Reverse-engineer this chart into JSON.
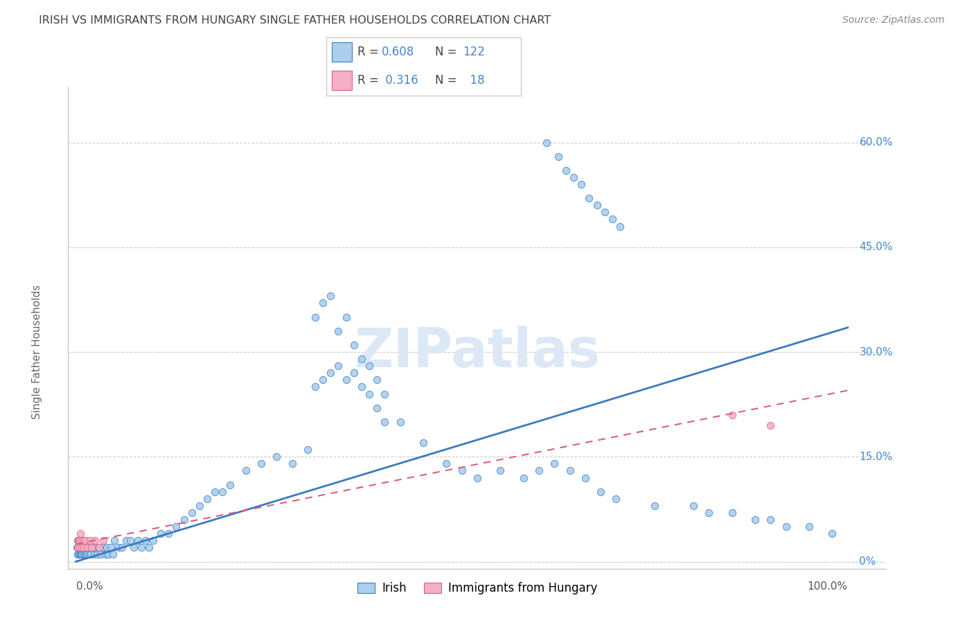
{
  "title": "IRISH VS IMMIGRANTS FROM HUNGARY SINGLE FATHER HOUSEHOLDS CORRELATION CHART",
  "source": "Source: ZipAtlas.com",
  "ylabel": "Single Father Households",
  "legend_irish_R": "0.608",
  "legend_irish_N": "122",
  "legend_hungary_R": "0.316",
  "legend_hungary_N": "18",
  "legend_label_irish": "Irish",
  "legend_label_hungary": "Immigrants from Hungary",
  "irish_color": "#aacfef",
  "hungary_color": "#f5afc6",
  "line_irish_color": "#3a7abf",
  "line_hungary_color": "#d9607a",
  "background_color": "#ffffff",
  "grid_color": "#cccccc",
  "title_color": "#404040",
  "right_axis_color": "#4488cc",
  "watermark_color": "#dce8f5",
  "irish_scatter_x": [
    0.001,
    0.002,
    0.002,
    0.003,
    0.003,
    0.004,
    0.004,
    0.005,
    0.005,
    0.006,
    0.006,
    0.007,
    0.007,
    0.008,
    0.008,
    0.009,
    0.009,
    0.01,
    0.01,
    0.011,
    0.011,
    0.012,
    0.012,
    0.013,
    0.014,
    0.015,
    0.015,
    0.016,
    0.017,
    0.018,
    0.019,
    0.02,
    0.022,
    0.024,
    0.025,
    0.027,
    0.03,
    0.032,
    0.035,
    0.038,
    0.04,
    0.042,
    0.045,
    0.048,
    0.05,
    0.055,
    0.06,
    0.065,
    0.07,
    0.075,
    0.08,
    0.085,
    0.09,
    0.095,
    0.1,
    0.11,
    0.12,
    0.13,
    0.14,
    0.15,
    0.16,
    0.17,
    0.18,
    0.19,
    0.2,
    0.22,
    0.24,
    0.26,
    0.28,
    0.3,
    0.31,
    0.32,
    0.33,
    0.34,
    0.35,
    0.36,
    0.37,
    0.38,
    0.39,
    0.4,
    0.31,
    0.32,
    0.33,
    0.34,
    0.35,
    0.36,
    0.37,
    0.38,
    0.39,
    0.4,
    0.42,
    0.45,
    0.48,
    0.5,
    0.52,
    0.55,
    0.58,
    0.6,
    0.62,
    0.64,
    0.66,
    0.68,
    0.7,
    0.75,
    0.8,
    0.82,
    0.85,
    0.88,
    0.9,
    0.92,
    0.95,
    0.98,
    0.61,
    0.625,
    0.635,
    0.645,
    0.655,
    0.665,
    0.675,
    0.685,
    0.695,
    0.705
  ],
  "irish_scatter_y": [
    0.02,
    0.01,
    0.03,
    0.02,
    0.01,
    0.02,
    0.03,
    0.01,
    0.02,
    0.01,
    0.03,
    0.02,
    0.01,
    0.02,
    0.01,
    0.02,
    0.01,
    0.03,
    0.02,
    0.01,
    0.02,
    0.01,
    0.03,
    0.02,
    0.01,
    0.02,
    0.01,
    0.02,
    0.01,
    0.02,
    0.01,
    0.02,
    0.02,
    0.01,
    0.02,
    0.01,
    0.02,
    0.01,
    0.02,
    0.01,
    0.02,
    0.01,
    0.02,
    0.01,
    0.03,
    0.02,
    0.02,
    0.03,
    0.03,
    0.02,
    0.03,
    0.02,
    0.03,
    0.02,
    0.03,
    0.04,
    0.04,
    0.05,
    0.06,
    0.07,
    0.08,
    0.09,
    0.1,
    0.1,
    0.11,
    0.13,
    0.14,
    0.15,
    0.14,
    0.16,
    0.25,
    0.26,
    0.27,
    0.28,
    0.26,
    0.27,
    0.25,
    0.24,
    0.22,
    0.2,
    0.35,
    0.37,
    0.38,
    0.33,
    0.35,
    0.31,
    0.29,
    0.28,
    0.26,
    0.24,
    0.2,
    0.17,
    0.14,
    0.13,
    0.12,
    0.13,
    0.12,
    0.13,
    0.14,
    0.13,
    0.12,
    0.1,
    0.09,
    0.08,
    0.08,
    0.07,
    0.07,
    0.06,
    0.06,
    0.05,
    0.05,
    0.04,
    0.6,
    0.58,
    0.56,
    0.55,
    0.54,
    0.52,
    0.51,
    0.5,
    0.49,
    0.48
  ],
  "hungary_scatter_x": [
    0.002,
    0.003,
    0.004,
    0.005,
    0.006,
    0.007,
    0.008,
    0.009,
    0.01,
    0.012,
    0.015,
    0.018,
    0.02,
    0.025,
    0.03,
    0.035,
    0.85,
    0.9
  ],
  "hungary_scatter_y": [
    0.02,
    0.03,
    0.03,
    0.02,
    0.04,
    0.03,
    0.02,
    0.03,
    0.02,
    0.03,
    0.02,
    0.03,
    0.02,
    0.03,
    0.02,
    0.03,
    0.21,
    0.195
  ],
  "irish_line_x": [
    0.0,
    1.0
  ],
  "irish_line_y": [
    0.0,
    0.335
  ],
  "hungary_line_x": [
    0.0,
    1.0
  ],
  "hungary_line_y": [
    0.025,
    0.245
  ],
  "xlim": [
    -0.01,
    1.05
  ],
  "ylim": [
    -0.01,
    0.68
  ],
  "ytick_vals": [
    0.0,
    0.15,
    0.3,
    0.45,
    0.6
  ],
  "ytick_labels": [
    "0%",
    "15.0%",
    "30.0%",
    "45.0%",
    "60.0%"
  ]
}
